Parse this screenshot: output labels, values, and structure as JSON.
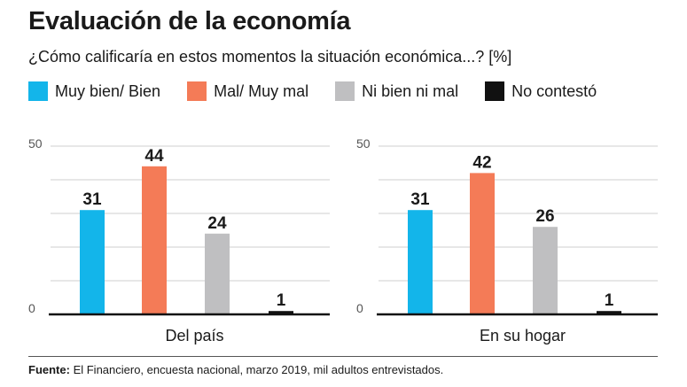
{
  "title": "Evaluación de la economía",
  "subtitle": "¿Cómo calificaría en estos momentos la situación económica...? [%]",
  "source": {
    "label": "Fuente:",
    "text": " El Financiero, encuesta nacional, marzo 2019, mil adultos entrevistados."
  },
  "legend": [
    {
      "label": "Muy bien/ Bien",
      "color": "#13b5ea"
    },
    {
      "label": "Mal/ Muy mal",
      "color": "#f47b57"
    },
    {
      "label": "Ni bien ni mal",
      "color": "#bfbfc1"
    },
    {
      "label": "No contestó",
      "color": "#111111"
    }
  ],
  "chart_data": [
    {
      "type": "bar",
      "xlabel": "Del país",
      "categories": [
        "Muy bien/ Bien",
        "Mal/ Muy mal",
        "Ni bien ni mal",
        "No contestó"
      ],
      "values": [
        31,
        44,
        24,
        1
      ],
      "ylim": [
        0,
        50
      ],
      "yticks": [
        0,
        50
      ],
      "grid": true
    },
    {
      "type": "bar",
      "xlabel": "En su hogar",
      "categories": [
        "Muy bien/ Bien",
        "Mal/ Muy mal",
        "Ni bien ni mal",
        "No contestó"
      ],
      "values": [
        31,
        42,
        26,
        1
      ],
      "ylim": [
        0,
        50
      ],
      "yticks": [
        0,
        50
      ],
      "grid": true
    }
  ]
}
